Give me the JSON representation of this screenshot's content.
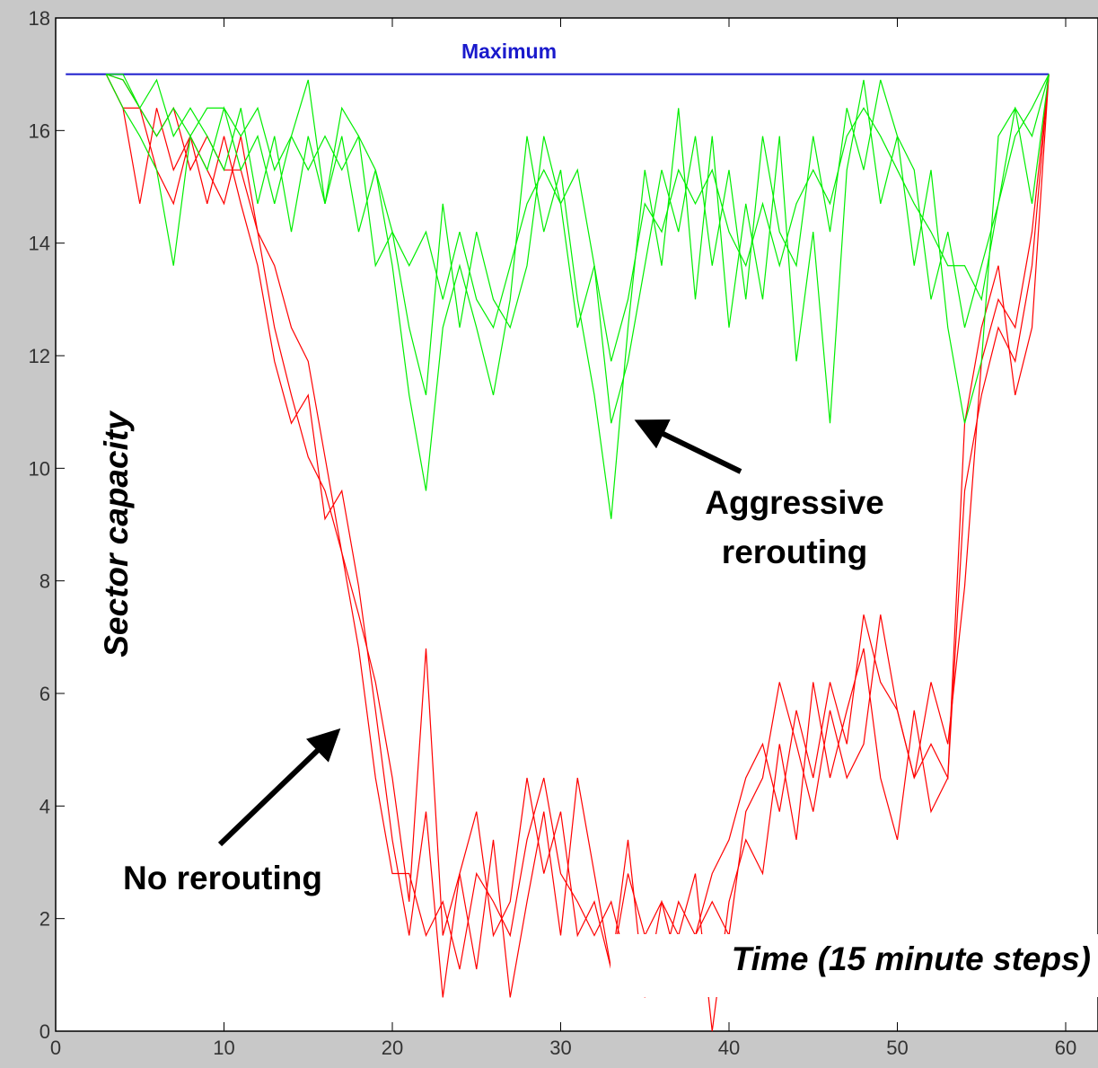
{
  "chart_data": {
    "type": "line",
    "x_label": "Time (15 minute steps)",
    "y_label": "Sector capacity",
    "xlim": [
      0,
      62
    ],
    "ylim": [
      0,
      18
    ],
    "xticks": [
      0,
      10,
      20,
      30,
      40,
      50,
      60
    ],
    "yticks": [
      0,
      2,
      4,
      6,
      8,
      10,
      12,
      14,
      16,
      18
    ],
    "reference_line": {
      "label": "Maximum",
      "value": 17,
      "color": "#1a1acc"
    },
    "annotations": [
      {
        "lines": [
          "Aggressive",
          "rerouting"
        ]
      },
      {
        "lines": [
          "No rerouting"
        ]
      }
    ],
    "x": [
      3,
      4,
      5,
      6,
      7,
      8,
      9,
      10,
      11,
      12,
      13,
      14,
      15,
      16,
      17,
      18,
      19,
      20,
      21,
      22,
      23,
      24,
      25,
      26,
      27,
      28,
      29,
      30,
      31,
      32,
      33,
      34,
      35,
      36,
      37,
      38,
      39,
      40,
      41,
      42,
      43,
      44,
      45,
      46,
      47,
      48,
      49,
      50,
      51,
      52,
      53,
      54,
      55,
      56,
      57,
      58,
      59
    ],
    "series": [
      {
        "color": "#ff0000",
        "values": [
          17,
          16.4,
          16.4,
          15.9,
          16.4,
          15.3,
          15.9,
          15.3,
          15.3,
          14.2,
          12.5,
          11.3,
          10.2,
          9.6,
          8.5,
          6.8,
          4.5,
          2.8,
          2.8,
          1.7,
          2.3,
          1.1,
          2.8,
          2.3,
          1.7,
          3.4,
          4.5,
          2.8,
          2.3,
          1.7,
          2.3,
          1.1,
          1.7,
          2.3,
          1.1,
          1.7,
          2.8,
          3.4,
          4.5,
          5.1,
          3.9,
          5.7,
          4.5,
          6.2,
          5.1,
          7.4,
          6.2,
          5.7,
          4.5,
          5.1,
          4.5,
          9.6,
          11.3,
          12.5,
          11.9,
          13.6,
          17
        ]
      },
      {
        "color": "#ff0000",
        "values": [
          17,
          16.4,
          14.7,
          16.4,
          15.3,
          15.9,
          14.7,
          15.9,
          14.7,
          13.6,
          11.9,
          10.8,
          11.3,
          9.1,
          9.6,
          7.9,
          5.7,
          3.4,
          1.7,
          3.9,
          0.6,
          2.8,
          1.1,
          3.4,
          0.6,
          2.3,
          3.9,
          1.7,
          4.5,
          2.8,
          1.1,
          3.4,
          0.6,
          2.3,
          1.7,
          2.8,
          0,
          2.3,
          3.4,
          2.8,
          5.1,
          3.4,
          6.2,
          4.5,
          5.7,
          6.8,
          4.5,
          3.4,
          5.7,
          3.9,
          4.5,
          10.8,
          12.5,
          13.6,
          11.3,
          12.5,
          17
        ]
      },
      {
        "color": "#ff0000",
        "values": [
          17,
          16.9,
          16.4,
          15.3,
          14.7,
          15.9,
          15.3,
          14.7,
          15.9,
          14.2,
          13.6,
          12.5,
          11.9,
          10.2,
          8.5,
          7.4,
          6.2,
          4.5,
          2.3,
          6.8,
          1.7,
          2.8,
          3.9,
          1.7,
          2.3,
          4.5,
          2.8,
          3.9,
          1.7,
          2.3,
          1.1,
          2.8,
          1.7,
          1.1,
          2.3,
          1.7,
          2.3,
          1.7,
          3.9,
          4.5,
          6.2,
          5.1,
          3.9,
          5.7,
          4.5,
          5.1,
          7.4,
          5.7,
          4.5,
          6.2,
          5.1,
          7.9,
          11.9,
          13.0,
          12.5,
          14.2,
          17
        ]
      },
      {
        "color": "#00ee00",
        "values": [
          17,
          17,
          16.4,
          15.9,
          16.4,
          15.9,
          16.4,
          16.4,
          15.9,
          16.4,
          15.3,
          15.9,
          15.3,
          15.9,
          15.3,
          15.9,
          15.3,
          14.2,
          13.6,
          14.2,
          13.0,
          14.2,
          13.0,
          12.5,
          13.6,
          14.7,
          15.3,
          14.7,
          15.3,
          13.6,
          11.9,
          13.0,
          14.7,
          14.2,
          15.3,
          14.7,
          15.3,
          14.2,
          13.6,
          14.7,
          13.6,
          14.7,
          15.3,
          14.7,
          15.9,
          16.4,
          15.9,
          15.3,
          14.7,
          14.2,
          13.6,
          13.6,
          13.0,
          14.7,
          15.9,
          16.4,
          17
        ]
      },
      {
        "color": "#00ee00",
        "values": [
          17,
          16.4,
          15.9,
          15.3,
          13.6,
          15.9,
          15.3,
          16.4,
          15.3,
          15.9,
          14.7,
          15.9,
          16.9,
          14.7,
          15.9,
          14.2,
          15.3,
          13.6,
          11.3,
          9.6,
          12.5,
          13.6,
          12.5,
          11.3,
          13.0,
          15.9,
          14.2,
          15.3,
          13.0,
          11.3,
          9.1,
          12.5,
          15.3,
          13.6,
          16.4,
          13.0,
          15.9,
          12.5,
          14.7,
          13.0,
          15.9,
          11.9,
          14.2,
          10.8,
          15.3,
          16.9,
          14.7,
          15.9,
          13.6,
          15.3,
          12.5,
          10.8,
          11.9,
          15.9,
          16.4,
          14.7,
          17
        ]
      },
      {
        "color": "#00ee00",
        "values": [
          17,
          16.9,
          16.4,
          16.9,
          15.9,
          16.4,
          15.9,
          15.3,
          16.4,
          14.7,
          15.9,
          14.2,
          15.9,
          14.7,
          16.4,
          15.9,
          13.6,
          14.2,
          12.5,
          11.3,
          14.7,
          12.5,
          14.2,
          13.0,
          12.5,
          13.6,
          15.9,
          14.7,
          12.5,
          13.6,
          10.8,
          11.9,
          13.6,
          15.3,
          14.2,
          15.9,
          13.6,
          15.3,
          13.0,
          15.9,
          14.2,
          13.6,
          15.9,
          14.2,
          16.4,
          15.3,
          16.9,
          15.9,
          15.3,
          13.0,
          14.2,
          12.5,
          13.6,
          14.7,
          16.4,
          15.9,
          17
        ]
      }
    ]
  }
}
